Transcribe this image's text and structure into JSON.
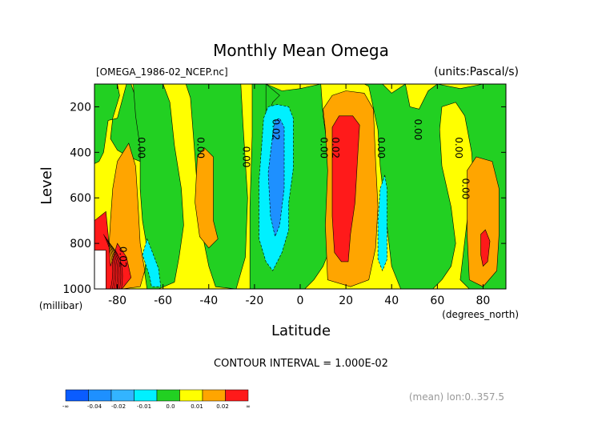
{
  "chart_data": {
    "type": "heatmap",
    "title": "Monthly Mean Omega",
    "file_label": "[OMEGA_1986-02_NCEP.nc]",
    "units_label": "(units:Pascal/s)",
    "xlabel": "Latitude",
    "x_units": "(degrees_north)",
    "ylabel": "Level",
    "y_units": "(millibar)",
    "xlim": [
      -90,
      90
    ],
    "ylim": [
      1000,
      100
    ],
    "x_ticks": [
      -80,
      -60,
      -40,
      -20,
      0,
      20,
      40,
      60,
      80
    ],
    "x_tick_labels": [
      "-80",
      "-60",
      "-40",
      "-20",
      "0",
      "20",
      "40",
      "60",
      "80"
    ],
    "y_ticks": [
      200,
      400,
      600,
      800,
      1000
    ],
    "y_tick_labels": [
      "200",
      "400",
      "600",
      "800",
      "1000"
    ],
    "contour_interval_text": "CONTOUR INTERVAL = 1.000E-02",
    "footer_text": "(mean) lon:0..357.5",
    "contour_labels": [
      {
        "text": "0.00",
        "lat": -71,
        "level": 380
      },
      {
        "text": "0.00",
        "lat": -45,
        "level": 380
      },
      {
        "text": "0.00",
        "lat": -25,
        "level": 420
      },
      {
        "text": "0.02",
        "lat": -12,
        "level": 300
      },
      {
        "text": "0.00",
        "lat": 9,
        "level": 380
      },
      {
        "text": "0.02",
        "lat": 14,
        "level": 380
      },
      {
        "text": "0.00",
        "lat": 34,
        "level": 380
      },
      {
        "text": "0.00",
        "lat": 50,
        "level": 300
      },
      {
        "text": "0.00",
        "lat": 68,
        "level": 380
      },
      {
        "text": "0.00",
        "lat": 71,
        "level": 560
      },
      {
        "text": "0.02",
        "lat": -79,
        "level": 860
      }
    ],
    "color_scale": {
      "colors": [
        "#0a5cff",
        "#1e90ff",
        "#33b4ff",
        "#00f0ff",
        "#22d022",
        "#ffff00",
        "#ffa500",
        "#ff1a1a"
      ],
      "labels": [
        "-∞",
        "-0.04",
        "-0.02",
        "-0.01",
        "0.0",
        "0.01",
        "0.02",
        "∞"
      ]
    },
    "background_color": "#ffff00",
    "regions": [
      {
        "value": "green",
        "points": [
          [
            -90,
            100
          ],
          [
            -80,
            100
          ],
          [
            -79,
            150
          ],
          [
            -82,
            250
          ],
          [
            -83,
            340
          ],
          [
            -80,
            390
          ],
          [
            -75,
            420
          ],
          [
            -70,
            440
          ],
          [
            -70,
            280
          ],
          [
            -72,
            160
          ],
          [
            -74,
            100
          ],
          [
            -76,
            100
          ],
          [
            -80,
            250
          ],
          [
            -84,
            260
          ],
          [
            -86,
            400
          ],
          [
            -88,
            440
          ],
          [
            -90,
            450
          ]
        ]
      },
      {
        "value": "green",
        "points": [
          [
            -73,
            100
          ],
          [
            -60,
            100
          ],
          [
            -57,
            180
          ],
          [
            -55,
            370
          ],
          [
            -52,
            560
          ],
          [
            -51,
            720
          ],
          [
            -53,
            860
          ],
          [
            -55,
            970
          ],
          [
            -62,
            1000
          ],
          [
            -67,
            1000
          ],
          [
            -68,
            930
          ],
          [
            -67,
            820
          ],
          [
            -69,
            700
          ],
          [
            -70,
            560
          ],
          [
            -70,
            380
          ],
          [
            -72,
            240
          ]
        ]
      },
      {
        "value": "green",
        "points": [
          [
            -50,
            100
          ],
          [
            -48,
            160
          ],
          [
            -46,
            420
          ],
          [
            -44,
            700
          ],
          [
            -40,
            900
          ],
          [
            -37,
            990
          ],
          [
            -28,
            1000
          ],
          [
            -24,
            860
          ],
          [
            -23,
            600
          ],
          [
            -25,
            280
          ],
          [
            -26,
            100
          ]
        ]
      },
      {
        "value": "green",
        "points": [
          [
            -20,
            100
          ],
          [
            -15,
            100
          ],
          [
            -8,
            130
          ],
          [
            0,
            120
          ],
          [
            9,
            100
          ],
          [
            10,
            240
          ],
          [
            12,
            380
          ],
          [
            14,
            560
          ],
          [
            14,
            800
          ],
          [
            10,
            900
          ],
          [
            6,
            960
          ],
          [
            2,
            1000
          ],
          [
            -10,
            1000
          ],
          [
            -22,
            1000
          ],
          [
            -22,
            640
          ],
          [
            -21,
            330
          ],
          [
            -21,
            200
          ],
          [
            -21,
            100
          ]
        ]
      },
      {
        "value": "green",
        "points": [
          [
            -15,
            100
          ],
          [
            -15,
            260
          ],
          [
            -12,
            180
          ],
          [
            -9,
            150
          ]
        ]
      },
      {
        "value": "green",
        "points": [
          [
            28,
            100
          ],
          [
            30,
            110
          ],
          [
            34,
            300
          ],
          [
            35,
            460
          ],
          [
            37,
            640
          ],
          [
            40,
            900
          ],
          [
            44,
            1000
          ],
          [
            58,
            1000
          ],
          [
            62,
            960
          ],
          [
            66,
            900
          ],
          [
            68,
            800
          ],
          [
            66,
            640
          ],
          [
            62,
            460
          ],
          [
            61,
            300
          ],
          [
            62,
            200
          ],
          [
            68,
            180
          ],
          [
            72,
            240
          ],
          [
            75,
            400
          ],
          [
            76,
            560
          ],
          [
            73,
            700
          ],
          [
            70,
            960
          ],
          [
            74,
            1000
          ],
          [
            90,
            1000
          ],
          [
            90,
            100
          ],
          [
            80,
            100
          ],
          [
            70,
            120
          ],
          [
            60,
            100
          ],
          [
            56,
            130
          ],
          [
            52,
            210
          ],
          [
            48,
            200
          ],
          [
            46,
            100
          ],
          [
            40,
            140
          ],
          [
            36,
            100
          ]
        ]
      },
      {
        "value": "cyan",
        "points": [
          [
            -17,
            390
          ],
          [
            -16,
            250
          ],
          [
            -14,
            200
          ],
          [
            -10,
            190
          ],
          [
            -5,
            200
          ],
          [
            -3,
            250
          ],
          [
            -3,
            470
          ],
          [
            -5,
            620
          ],
          [
            -5,
            740
          ],
          [
            -8,
            840
          ],
          [
            -12,
            920
          ],
          [
            -15,
            880
          ],
          [
            -18,
            780
          ],
          [
            -18,
            520
          ]
        ]
      },
      {
        "value": "cyan",
        "points": [
          [
            -67,
            780
          ],
          [
            -65,
            830
          ],
          [
            -62,
            910
          ],
          [
            -61,
            990
          ],
          [
            -65,
            990
          ],
          [
            -66,
            940
          ],
          [
            -69,
            850
          ]
        ]
      },
      {
        "value": "cyan",
        "points": [
          [
            37,
            500
          ],
          [
            38,
            560
          ],
          [
            38,
            700
          ],
          [
            38,
            870
          ],
          [
            36,
            920
          ],
          [
            34,
            870
          ],
          [
            34,
            700
          ],
          [
            35,
            560
          ]
        ]
      },
      {
        "value": "blue",
        "points": [
          [
            -12,
            320
          ],
          [
            -11,
            260
          ],
          [
            -9,
            250
          ],
          [
            -7,
            290
          ],
          [
            -7,
            560
          ],
          [
            -9,
            720
          ],
          [
            -11,
            770
          ],
          [
            -13,
            680
          ],
          [
            -14,
            490
          ]
        ]
      },
      {
        "value": "orange",
        "points": [
          [
            -80,
            440
          ],
          [
            -75,
            360
          ],
          [
            -72,
            460
          ],
          [
            -71,
            620
          ],
          [
            -70,
            800
          ],
          [
            -68,
            920
          ],
          [
            -70,
            990
          ],
          [
            -78,
            1000
          ],
          [
            -82,
            980
          ],
          [
            -84,
            880
          ],
          [
            -83,
            700
          ],
          [
            -82,
            560
          ]
        ]
      },
      {
        "value": "orange",
        "points": [
          [
            -45,
            420
          ],
          [
            -42,
            380
          ],
          [
            -38,
            420
          ],
          [
            -38,
            700
          ],
          [
            -36,
            780
          ],
          [
            -40,
            820
          ],
          [
            -44,
            770
          ],
          [
            -46,
            620
          ]
        ]
      },
      {
        "value": "orange",
        "points": [
          [
            10,
            210
          ],
          [
            14,
            150
          ],
          [
            20,
            130
          ],
          [
            28,
            140
          ],
          [
            32,
            210
          ],
          [
            33,
            440
          ],
          [
            34,
            640
          ],
          [
            33,
            820
          ],
          [
            30,
            960
          ],
          [
            22,
            990
          ],
          [
            12,
            960
          ],
          [
            11,
            720
          ],
          [
            12,
            480
          ],
          [
            11,
            300
          ]
        ]
      },
      {
        "value": "orange",
        "points": [
          [
            73,
            480
          ],
          [
            77,
            420
          ],
          [
            84,
            440
          ],
          [
            87,
            560
          ],
          [
            87,
            760
          ],
          [
            86,
            920
          ],
          [
            80,
            990
          ],
          [
            74,
            960
          ],
          [
            73,
            760
          ]
        ]
      },
      {
        "value": "red",
        "points": [
          [
            14,
            290
          ],
          [
            17,
            240
          ],
          [
            23,
            240
          ],
          [
            26,
            280
          ],
          [
            25,
            440
          ],
          [
            24,
            620
          ],
          [
            22,
            760
          ],
          [
            21,
            880
          ],
          [
            18,
            880
          ],
          [
            15,
            840
          ],
          [
            14,
            680
          ],
          [
            14,
            480
          ]
        ]
      },
      {
        "value": "red",
        "points": [
          [
            -90,
            700
          ],
          [
            -85,
            660
          ],
          [
            -84,
            760
          ],
          [
            -83,
            900
          ],
          [
            -80,
            800
          ],
          [
            -76,
            860
          ],
          [
            -74,
            950
          ],
          [
            -78,
            1000
          ],
          [
            -90,
            1000
          ]
        ]
      },
      {
        "value": "red",
        "points": [
          [
            79,
            760
          ],
          [
            81,
            740
          ],
          [
            83,
            790
          ],
          [
            82,
            880
          ],
          [
            80,
            900
          ],
          [
            79,
            850
          ]
        ]
      },
      {
        "value": "white",
        "points": [
          [
            -90,
            830
          ],
          [
            -85,
            830
          ],
          [
            -85,
            1000
          ],
          [
            -90,
            1000
          ]
        ]
      }
    ]
  }
}
